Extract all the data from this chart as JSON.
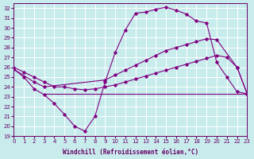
{
  "xlabel": "Windchill (Refroidissement éolien,°C)",
  "xlim": [
    0,
    23
  ],
  "ylim": [
    19,
    32.5
  ],
  "yticks": [
    19,
    20,
    21,
    22,
    23,
    24,
    25,
    26,
    27,
    28,
    29,
    30,
    31,
    32
  ],
  "xticks": [
    0,
    1,
    2,
    3,
    4,
    5,
    6,
    7,
    8,
    9,
    10,
    11,
    12,
    13,
    14,
    15,
    16,
    17,
    18,
    19,
    20,
    21,
    22,
    23
  ],
  "bg_color": "#c8ecec",
  "grid_color": "#ffffff",
  "line_color": "#800080",
  "line1_x": [
    0,
    1,
    2,
    3,
    4,
    5,
    6,
    7,
    8,
    9,
    10,
    11,
    12,
    13,
    14,
    15,
    16,
    17,
    18,
    19,
    20,
    21,
    22,
    23
  ],
  "line1_y": [
    25.8,
    25.0,
    23.8,
    23.2,
    22.3,
    21.2,
    20.0,
    19.5,
    21.0,
    24.5,
    27.5,
    29.8,
    31.5,
    31.6,
    31.9,
    32.1,
    31.8,
    31.4,
    30.7,
    30.5,
    26.5,
    25.0,
    23.5,
    23.3
  ],
  "line2_x": [
    0,
    2,
    3,
    9,
    10,
    11,
    12,
    13,
    14,
    15,
    16,
    17,
    18,
    19,
    20,
    22,
    23
  ],
  "line2_y": [
    25.8,
    24.5,
    24.0,
    24.7,
    25.2,
    25.7,
    26.2,
    26.7,
    27.2,
    27.7,
    28.0,
    28.3,
    28.6,
    28.9,
    28.8,
    26.0,
    23.3
  ],
  "line3_x": [
    0,
    1,
    2,
    3,
    4,
    5,
    6,
    7,
    8,
    9,
    10,
    11,
    12,
    13,
    14,
    15,
    16,
    17,
    18,
    19,
    20,
    21,
    22,
    23
  ],
  "line3_y": [
    26.0,
    25.5,
    25.0,
    24.5,
    24.0,
    24.0,
    23.8,
    23.7,
    23.8,
    24.0,
    24.2,
    24.5,
    24.8,
    25.1,
    25.4,
    25.7,
    26.0,
    26.3,
    26.6,
    26.9,
    27.2,
    27.0,
    26.0,
    23.3
  ],
  "line4_x": [
    3,
    23
  ],
  "line4_y": [
    23.3,
    23.3
  ]
}
